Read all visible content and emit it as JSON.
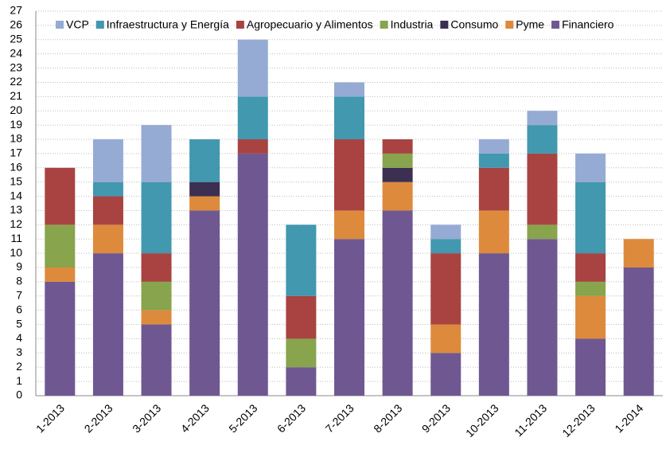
{
  "chart_data": {
    "type": "stacked_bar",
    "categories": [
      "1-2013",
      "2-2013",
      "3-2013",
      "4-2013",
      "5-2013",
      "6-2013",
      "7-2013",
      "8-2013",
      "9-2013",
      "10-2013",
      "11-2013",
      "12-2013",
      "1-2014"
    ],
    "series": [
      {
        "name": "VCP",
        "color": "#95abd4",
        "values": [
          0,
          3,
          4,
          0,
          4,
          0,
          1,
          0,
          1,
          1,
          1,
          2,
          0
        ]
      },
      {
        "name": "Infraestructura y Energía",
        "color": "#4198af",
        "values": [
          0,
          1,
          5,
          3,
          3,
          5,
          3,
          0,
          1,
          1,
          2,
          5,
          0
        ]
      },
      {
        "name": "Agropecuario y Alimentos",
        "color": "#a84342",
        "values": [
          4,
          2,
          2,
          0,
          1,
          3,
          5,
          1,
          5,
          3,
          5,
          2,
          0
        ]
      },
      {
        "name": "Industria",
        "color": "#88a44c",
        "values": [
          3,
          0,
          2,
          0,
          0,
          2,
          0,
          1,
          0,
          0,
          1,
          1,
          0
        ]
      },
      {
        "name": "Consumo",
        "color": "#3b2f52",
        "values": [
          0,
          0,
          0,
          1,
          0,
          0,
          0,
          1,
          0,
          0,
          0,
          0,
          0
        ]
      },
      {
        "name": "Pyme",
        "color": "#de8a3c",
        "values": [
          1,
          2,
          1,
          1,
          0,
          0,
          2,
          2,
          2,
          3,
          0,
          3,
          2
        ]
      },
      {
        "name": "Financiero",
        "color": "#6f5891",
        "values": [
          8,
          10,
          5,
          13,
          17,
          2,
          11,
          13,
          3,
          10,
          11,
          4,
          9
        ]
      }
    ],
    "ylim": [
      0,
      27
    ],
    "yticks": [
      0,
      1,
      2,
      3,
      4,
      5,
      6,
      7,
      8,
      9,
      10,
      11,
      12,
      13,
      14,
      15,
      16,
      17,
      18,
      19,
      20,
      21,
      22,
      23,
      24,
      25,
      26,
      27
    ],
    "grid": true,
    "legend": "top"
  }
}
